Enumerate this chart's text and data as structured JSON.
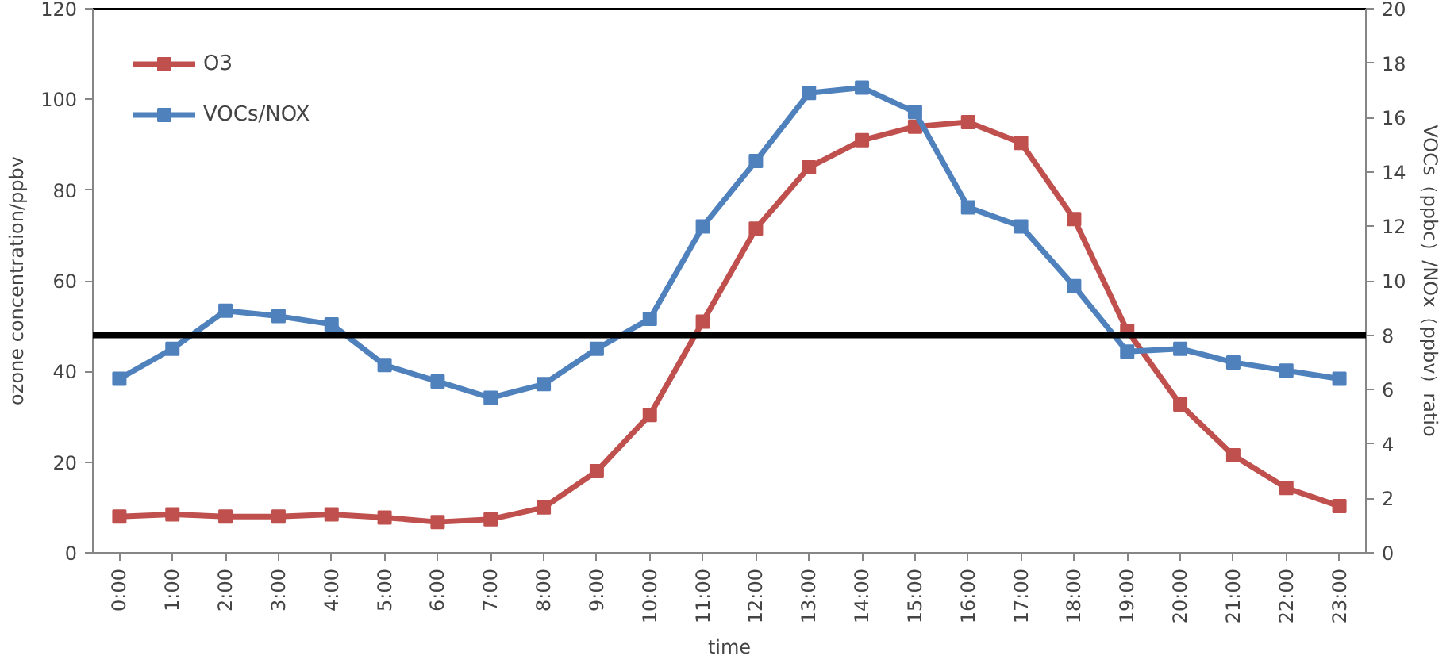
{
  "chart_data": {
    "type": "line",
    "xlabel": "time",
    "ylabel": "ozone concentration/ppbv",
    "y2label": "VOCs（ppbc）/NOx（ppbv）ratio",
    "categories": [
      "0:00",
      "1:00",
      "2:00",
      "3:00",
      "4:00",
      "5:00",
      "6:00",
      "7:00",
      "8:00",
      "9:00",
      "10:00",
      "11:00",
      "12:00",
      "13:00",
      "14:00",
      "15:00",
      "16:00",
      "17:00",
      "18:00",
      "19:00",
      "20:00",
      "21:00",
      "22:00",
      "23:00"
    ],
    "series": [
      {
        "name": "O3",
        "color": "#c0504d",
        "values": [
          8.0,
          8.5,
          8.0,
          8.0,
          8.5,
          7.8,
          6.8,
          7.4,
          10,
          18,
          30.4,
          51,
          71.5,
          85,
          91,
          94,
          95,
          90.4,
          73.6,
          49,
          32.7,
          21.5,
          14.3,
          10.3
        ]
      },
      {
        "name": "VOCs/NOX",
        "color": "#4f81bd",
        "axis": "y2",
        "values": [
          6.4,
          7.5,
          8.9,
          8.7,
          8.4,
          6.9,
          6.3,
          5.7,
          6.2,
          7.5,
          8.6,
          12.0,
          14.4,
          16.9,
          17.1,
          16.2,
          12.7,
          12.0,
          9.8,
          7.4,
          7.5,
          7.0,
          6.7,
          6.4
        ]
      }
    ],
    "ylim": [
      0,
      120
    ],
    "yticks": [
      0,
      20,
      40,
      60,
      80,
      100,
      120
    ],
    "y2lim": [
      0,
      20
    ],
    "y2ticks": [
      0,
      2,
      4,
      6,
      8,
      10,
      12,
      14,
      16,
      18,
      20
    ],
    "ref_lines": [
      {
        "axis": "y2",
        "value": 8,
        "color": "#000000"
      }
    ],
    "marker": "square",
    "grid": false,
    "legend": "top left"
  }
}
